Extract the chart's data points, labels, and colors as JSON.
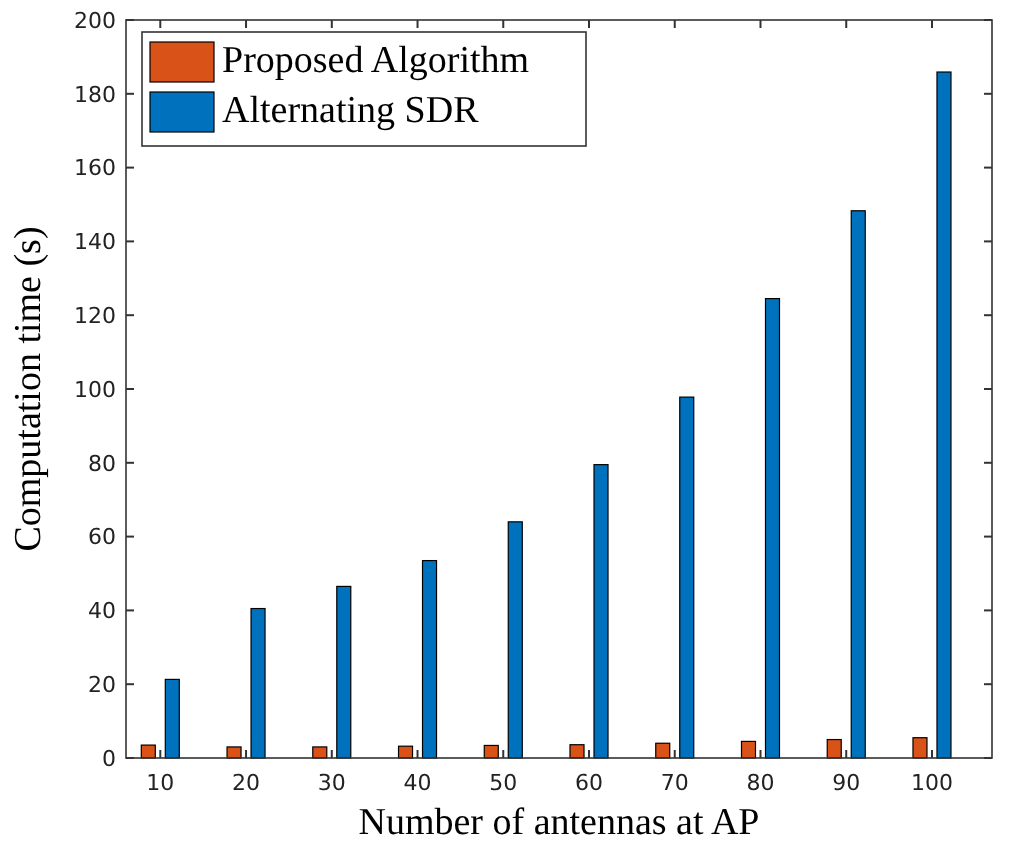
{
  "chart_data": {
    "type": "bar",
    "xlabel": "Number of antennas at AP",
    "ylabel": "Computation time (s)",
    "categories": [
      "10",
      "20",
      "30",
      "40",
      "50",
      "60",
      "70",
      "80",
      "90",
      "100"
    ],
    "series": [
      {
        "name": "Proposed Algorithm",
        "color": "#d95319",
        "values": [
          3.5,
          3,
          3,
          3.2,
          3.4,
          3.6,
          4,
          4.5,
          5,
          5.5
        ]
      },
      {
        "name": "Alternating SDR",
        "color": "#0072bd",
        "values": [
          21.3,
          40.5,
          46.5,
          53.5,
          64,
          79.5,
          97.8,
          124.5,
          148.3,
          185.9
        ]
      }
    ],
    "ylim": [
      0,
      200
    ],
    "yticks": [
      0,
      20,
      40,
      60,
      80,
      100,
      120,
      140,
      160,
      180,
      200
    ],
    "grid": false,
    "legend": "top left"
  }
}
